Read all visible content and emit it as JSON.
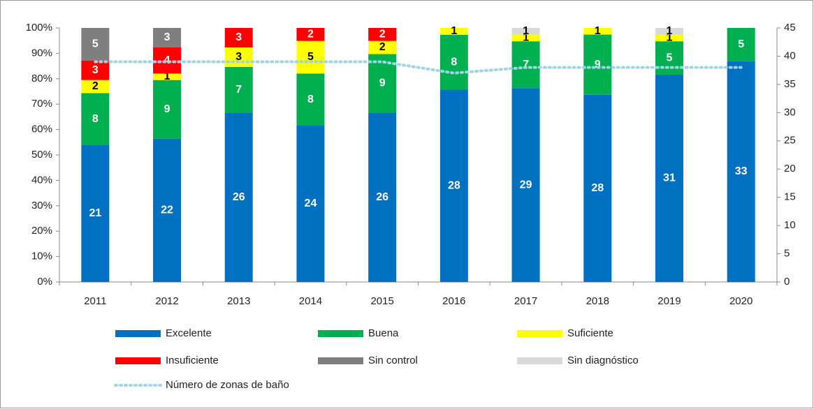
{
  "chart_data": {
    "type": "bar",
    "stacked_percent": true,
    "categories": [
      "2011",
      "2012",
      "2013",
      "2014",
      "2015",
      "2016",
      "2017",
      "2018",
      "2019",
      "2020"
    ],
    "series": [
      {
        "name": "Excelente",
        "color": "#0070c0",
        "values": [
          21,
          22,
          26,
          24,
          26,
          28,
          29,
          28,
          31,
          33
        ]
      },
      {
        "name": "Buena",
        "color": "#00b050",
        "values": [
          8,
          9,
          7,
          8,
          9,
          8,
          7,
          9,
          5,
          5
        ]
      },
      {
        "name": "Suficiente",
        "color": "#ffff00",
        "values": [
          2,
          1,
          3,
          5,
          2,
          1,
          1,
          1,
          1,
          null
        ]
      },
      {
        "name": "Insuficiente",
        "color": "#ff0000",
        "values": [
          3,
          4,
          3,
          2,
          2,
          null,
          null,
          null,
          null,
          null
        ]
      },
      {
        "name": "Sin control",
        "color": "#7f7f7f",
        "values": [
          5,
          3,
          null,
          null,
          null,
          null,
          null,
          null,
          null,
          null
        ]
      },
      {
        "name": "Sin diagnóstico",
        "color": "#d9d9d9",
        "values": [
          null,
          null,
          null,
          null,
          null,
          null,
          1,
          null,
          1,
          null
        ]
      },
      {
        "name": "Número de zonas de baño",
        "type": "line",
        "axis": "y2",
        "color": "#9fd3e6",
        "values": [
          39,
          39,
          39,
          39,
          39,
          37,
          38,
          38,
          38,
          38
        ]
      }
    ],
    "ylim": [
      0,
      100
    ],
    "yticks": [
      {
        "value": 0,
        "label": "0%"
      },
      {
        "value": 10,
        "label": "10%"
      },
      {
        "value": 20,
        "label": "20%"
      },
      {
        "value": 30,
        "label": "30%"
      },
      {
        "value": 40,
        "label": "40%"
      },
      {
        "value": 50,
        "label": "50%"
      },
      {
        "value": 60,
        "label": "60%"
      },
      {
        "value": 70,
        "label": "70%"
      },
      {
        "value": 80,
        "label": "80%"
      },
      {
        "value": 90,
        "label": "90%"
      },
      {
        "value": 100,
        "label": "100%"
      }
    ],
    "y2lim": [
      0,
      45
    ],
    "y2ticks": [
      0,
      5,
      10,
      15,
      20,
      25,
      30,
      35,
      40,
      45
    ],
    "legend": "bottom"
  }
}
